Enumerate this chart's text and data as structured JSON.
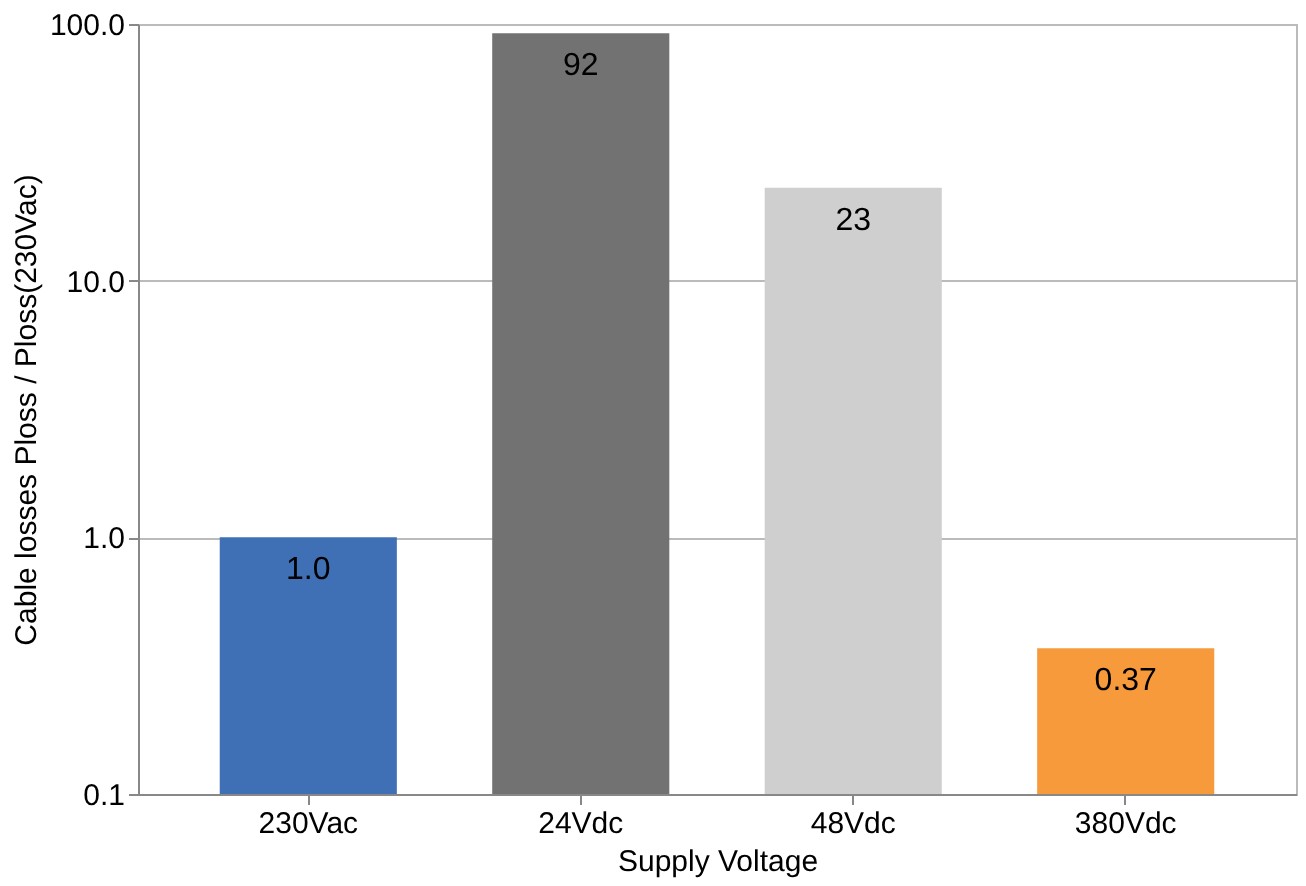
{
  "chart_data": {
    "type": "bar",
    "xlabel": "Supply Voltage",
    "ylabel": "Cable losses Ploss / Ploss(230Vac)",
    "categories": [
      "230Vac",
      "24Vdc",
      "48Vdc",
      "380Vdc"
    ],
    "values": [
      1.0,
      92,
      23,
      0.37
    ],
    "colors": [
      "#3f6fb5",
      "#727272",
      "#cfcfcf",
      "#f79a3c"
    ],
    "value_labels": [
      "1.0",
      "92",
      "23",
      "0.37"
    ],
    "log": true,
    "ylim": [
      0.1,
      100
    ],
    "yticks": [
      0.1,
      {
        "value": 1,
        "label": "1.0"
      },
      {
        "value": 10,
        "label": "10.0"
      },
      {
        "value": 100,
        "label": "100.0"
      }
    ],
    "grid": "y"
  }
}
